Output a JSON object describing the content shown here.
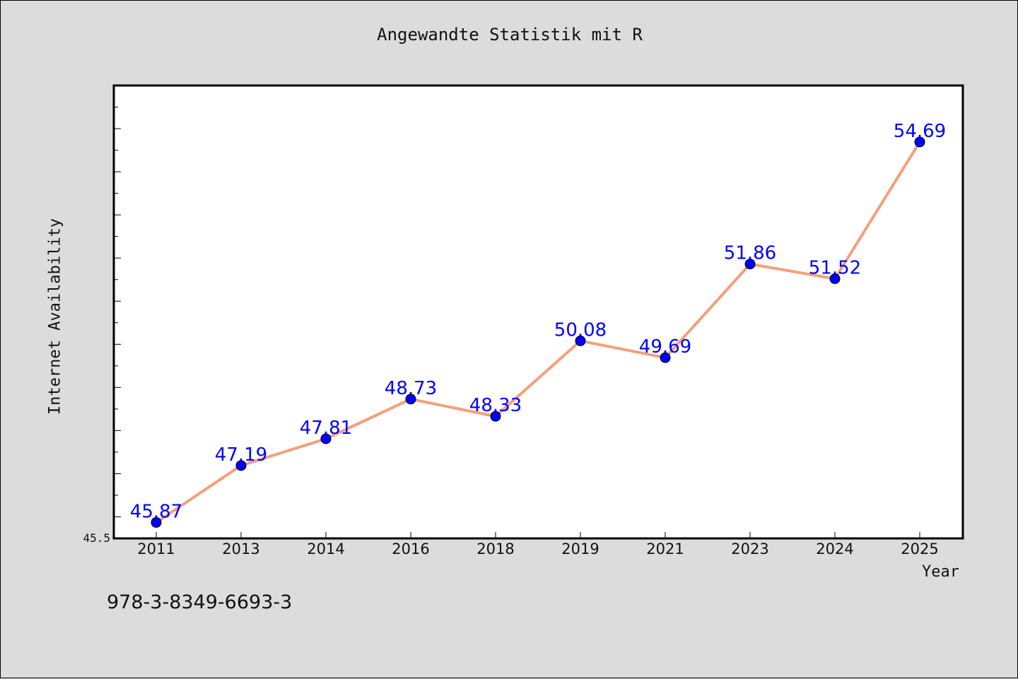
{
  "chart_data": {
    "type": "line",
    "title": "Angewandte Statistik mit R",
    "xlabel": "Year",
    "ylabel": "Internet Availability",
    "categories": [
      "2011",
      "2013",
      "2014",
      "2016",
      "2018",
      "2019",
      "2021",
      "2023",
      "2024",
      "2025"
    ],
    "series": [
      {
        "values": [
          45.87,
          47.19,
          47.81,
          48.73,
          48.33,
          50.08,
          49.69,
          51.86,
          51.52,
          54.69
        ],
        "data_labels": [
          "45.87",
          "47.19",
          "47.81",
          "48.73",
          "48.33",
          "50.08",
          "49.69",
          "51.86",
          "51.52",
          "54.69"
        ],
        "line_color": "#f4a07a",
        "marker_color": "#0000ff",
        "label_color": "#0000ff"
      }
    ],
    "ylim": [
      45.5,
      56.0
    ],
    "y_tick_labels": [
      "45.5"
    ],
    "grid": false,
    "legend": "none"
  },
  "footer": {
    "isbn": "978-3-8349-6693-3"
  }
}
